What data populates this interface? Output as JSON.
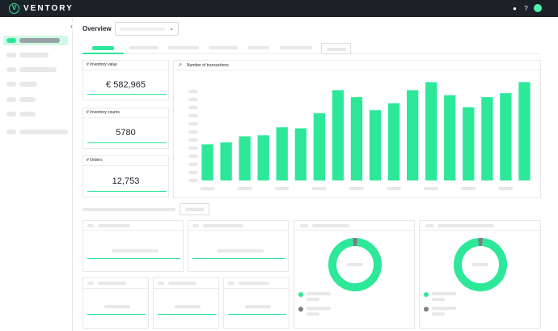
{
  "app": {
    "brand": "VENTORY",
    "logo_letter": "V"
  },
  "topbar": {
    "icons": [
      "bell-icon",
      "help-icon",
      "user-avatar"
    ]
  },
  "page": {
    "title": "Overview"
  },
  "kpis": [
    {
      "label": "# Inventory value",
      "value": "€ 582,965"
    },
    {
      "label": "# Inventory counts",
      "value": "5780"
    },
    {
      "label": "# Orders",
      "value": "12,753"
    }
  ],
  "chart_data": {
    "type": "bar",
    "title": "Number of transactions",
    "values": [
      36,
      38,
      44,
      45,
      53,
      52,
      67,
      90,
      83,
      70,
      77,
      90,
      98,
      85,
      73,
      83,
      87,
      98
    ],
    "color": "#2ee89a",
    "ylim": [
      0,
      100
    ],
    "xlabel": "",
    "ylabel": ""
  },
  "donuts": [
    {
      "values": [
        97,
        3
      ],
      "colors": [
        "#2ee89a",
        "#7a7f85"
      ]
    },
    {
      "values": [
        97,
        3
      ],
      "colors": [
        "#2ee89a",
        "#7a7f85"
      ]
    }
  ],
  "colors": {
    "accent": "#2ee89a",
    "dark": "#1c2128",
    "muted": "#7a7f85"
  }
}
